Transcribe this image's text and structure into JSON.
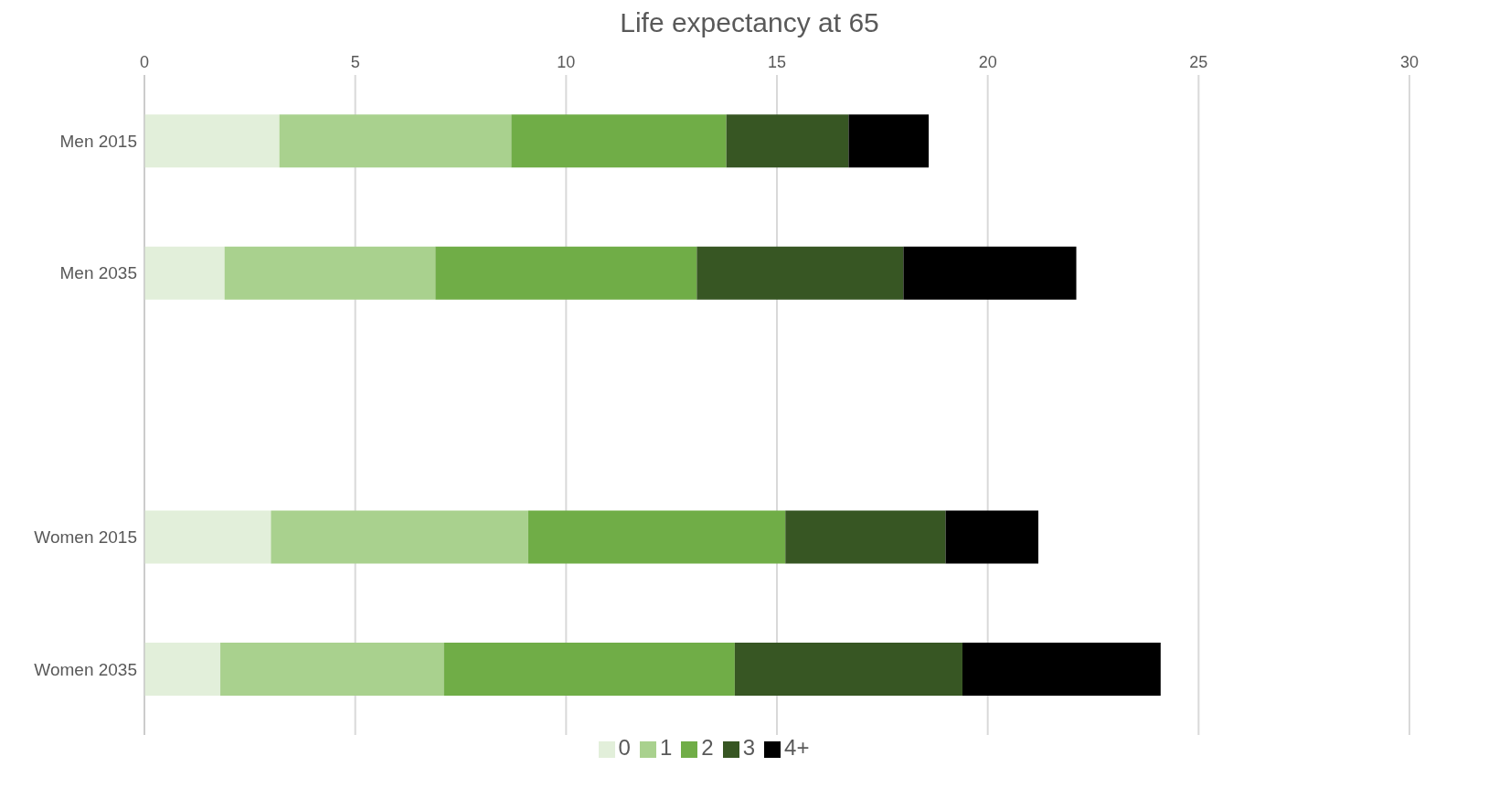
{
  "chart_data": {
    "type": "bar",
    "title": "Life expectancy at 65",
    "orientation": "horizontal",
    "stacked": true,
    "categories": [
      "Men 2015",
      "Men 2035",
      null,
      "Women 2015",
      "Women 2035"
    ],
    "series": [
      {
        "name": "0",
        "color": "#e2efda",
        "values": [
          3.2,
          1.9,
          null,
          3.0,
          1.8
        ]
      },
      {
        "name": "1",
        "color": "#a9d18e",
        "values": [
          5.5,
          5.0,
          null,
          6.1,
          5.3
        ]
      },
      {
        "name": "2",
        "color": "#70ad47",
        "values": [
          5.1,
          6.2,
          null,
          6.1,
          6.9
        ]
      },
      {
        "name": "3",
        "color": "#375623",
        "values": [
          2.9,
          4.9,
          null,
          3.8,
          5.4
        ]
      },
      {
        "name": "4+",
        "color": "#000000",
        "values": [
          1.9,
          4.1,
          null,
          2.2,
          4.7
        ]
      }
    ],
    "xlim": [
      0,
      30
    ],
    "xticks": [
      0,
      5,
      10,
      15,
      20,
      25,
      30
    ],
    "grid": "x",
    "legend": "bottom"
  }
}
